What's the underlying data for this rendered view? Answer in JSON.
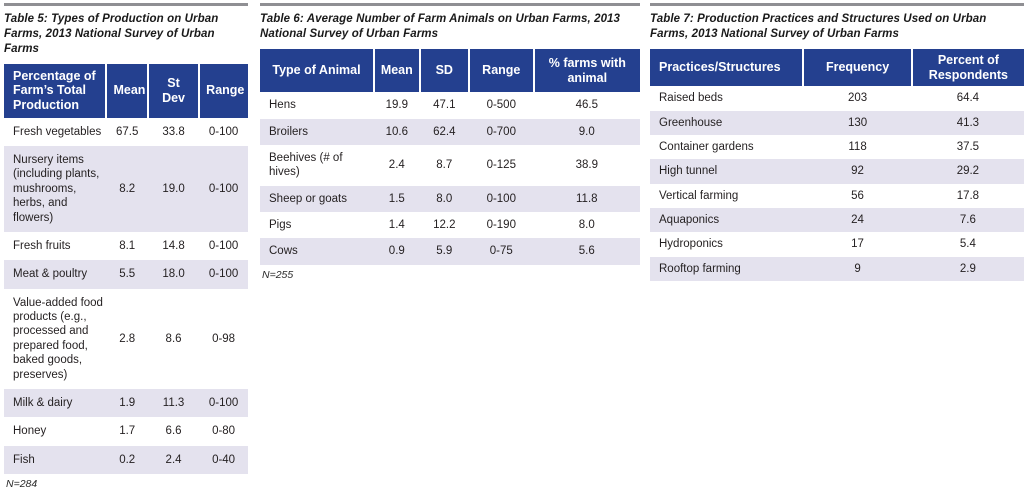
{
  "colors": {
    "header_bg": "#24408f",
    "header_text": "#ffffff",
    "stripe": "#e4e2ee",
    "rule": "#8f8f93",
    "text": "#231f20"
  },
  "tables": [
    {
      "title": "Table 5: Types of Production on Urban Farms, 2013 National Survey of Urban Farms",
      "columns": [
        "Percentage of Farm’s Total Production",
        "Mean",
        "St Dev",
        "Range"
      ],
      "rows": [
        [
          "Fresh vegetables",
          "67.5",
          "33.8",
          "0-100"
        ],
        [
          "Nursery items (including plants, mushrooms, herbs, and flowers)",
          "8.2",
          "19.0",
          "0-100"
        ],
        [
          "Fresh fruits",
          "8.1",
          "14.8",
          "0-100"
        ],
        [
          "Meat & poultry",
          "5.5",
          "18.0",
          "0-100"
        ],
        [
          "Value-added food products (e.g., processed and prepared food, baked goods, preserves)",
          "2.8",
          "8.6",
          "0-98"
        ],
        [
          "Milk & dairy",
          "1.9",
          "11.3",
          "0-100"
        ],
        [
          "Honey",
          "1.7",
          "6.6",
          "0-80"
        ],
        [
          "Fish",
          "0.2",
          "2.4",
          "0-40"
        ]
      ],
      "footnote": "N=284"
    },
    {
      "title": "Table 6: Average Number of Farm Animals on Urban Farms, 2013 National Survey of Urban Farms",
      "columns": [
        "Type of Animal",
        "Mean",
        "SD",
        "Range",
        "% farms with animal"
      ],
      "rows": [
        [
          "Hens",
          "19.9",
          "47.1",
          "0-500",
          "46.5"
        ],
        [
          "Broilers",
          "10.6",
          "62.4",
          "0-700",
          "9.0"
        ],
        [
          "Beehives (# of hives)",
          "2.4",
          "8.7",
          "0-125",
          "38.9"
        ],
        [
          "Sheep or goats",
          "1.5",
          "8.0",
          "0-100",
          "11.8"
        ],
        [
          "Pigs",
          "1.4",
          "12.2",
          "0-190",
          "8.0"
        ],
        [
          "Cows",
          "0.9",
          "5.9",
          "0-75",
          "5.6"
        ]
      ],
      "footnote": "N=255"
    },
    {
      "title": "Table 7: Production Practices and Structures Used on Urban Farms, 2013 National Survey of Urban Farms",
      "columns": [
        "Practices/Structures",
        "Frequency",
        "Percent of Respondents"
      ],
      "rows": [
        [
          "Raised beds",
          "203",
          "64.4"
        ],
        [
          "Greenhouse",
          "130",
          "41.3"
        ],
        [
          "Container gardens",
          "118",
          "37.5"
        ],
        [
          "High tunnel",
          "92",
          "29.2"
        ],
        [
          "Vertical farming",
          "56",
          "17.8"
        ],
        [
          "Aquaponics",
          "24",
          "7.6"
        ],
        [
          "Hydroponics",
          "17",
          "5.4"
        ],
        [
          "Rooftop farming",
          "9",
          "2.9"
        ]
      ],
      "footnote": ""
    }
  ]
}
